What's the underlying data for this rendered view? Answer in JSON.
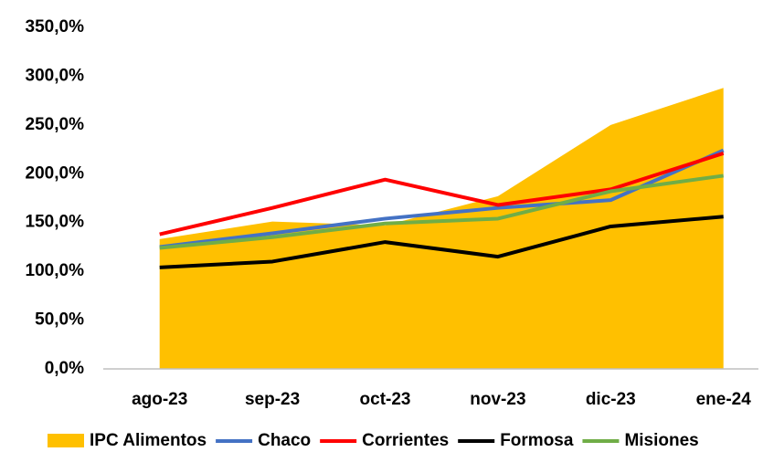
{
  "chart_data": {
    "type": "line",
    "categories": [
      "ago-23",
      "sep-23",
      "oct-23",
      "nov-23",
      "dic-23",
      "ene-24"
    ],
    "series": [
      {
        "name": "IPC Alimentos",
        "type": "area",
        "color": "#ffc000",
        "values": [
          133,
          151,
          147,
          177,
          250,
          288
        ]
      },
      {
        "name": "Chaco",
        "type": "line",
        "color": "#4472c4",
        "values": [
          125,
          139,
          154,
          165,
          173,
          224
        ]
      },
      {
        "name": "Corrientes",
        "type": "line",
        "color": "#ff0000",
        "values": [
          138,
          165,
          194,
          168,
          184,
          221
        ]
      },
      {
        "name": "Formosa",
        "type": "line",
        "color": "#000000",
        "values": [
          104,
          110,
          130,
          115,
          146,
          156
        ]
      },
      {
        "name": "Misiones",
        "type": "line",
        "color": "#70ad47",
        "values": [
          124,
          135,
          149,
          154,
          182,
          198
        ]
      }
    ],
    "ylim": [
      0,
      350
    ],
    "yticks": [
      {
        "value": 0,
        "label": "0,0%"
      },
      {
        "value": 50,
        "label": "50,0%"
      },
      {
        "value": 100,
        "label": "100,0%"
      },
      {
        "value": 150,
        "label": "150,0%"
      },
      {
        "value": 200,
        "label": "200,0%"
      },
      {
        "value": 250,
        "label": "250,0%"
      },
      {
        "value": 300,
        "label": "300,0%"
      },
      {
        "value": 350,
        "label": "350,0%"
      }
    ],
    "grid": false,
    "legend": "bottom"
  }
}
